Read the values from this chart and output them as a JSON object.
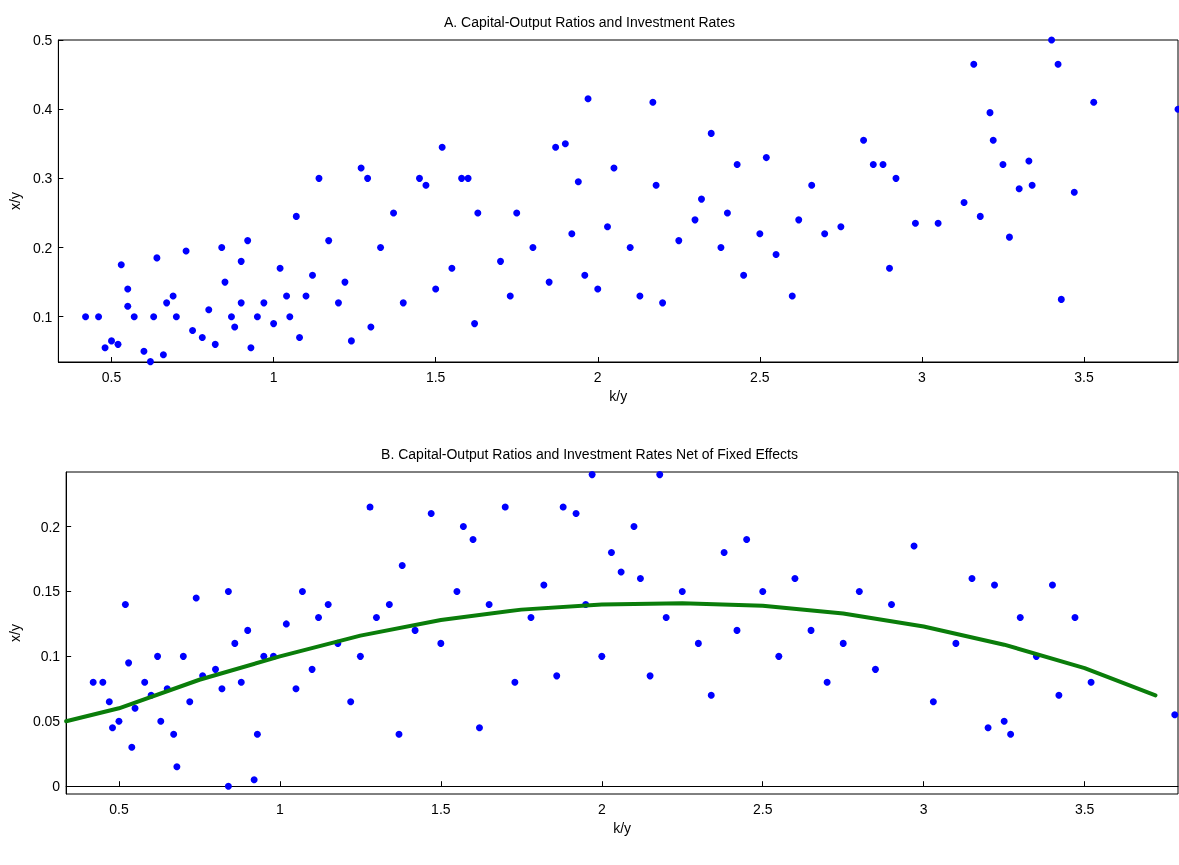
{
  "chart_data": [
    {
      "type": "scatter",
      "title": "A. Capital-Output Ratios and Investment Rates",
      "xlabel": "k/y",
      "ylabel": "x/y",
      "xlim": [
        0.336,
        3.79
      ],
      "ylim": [
        0.0345,
        0.5
      ],
      "xticks": [
        0.5,
        1,
        1.5,
        2,
        2.5,
        3,
        3.5
      ],
      "yticks": [
        0.1,
        0.2,
        0.3,
        0.4,
        0.5
      ],
      "marker": "circle",
      "series": [
        {
          "color": "#0000ff",
          "x": [
            0.42,
            0.46,
            0.48,
            0.5,
            0.52,
            0.53,
            0.55,
            0.55,
            0.57,
            0.6,
            0.62,
            0.63,
            0.64,
            0.66,
            0.67,
            0.69,
            0.7,
            0.73,
            0.75,
            0.78,
            0.8,
            0.82,
            0.84,
            0.85,
            0.87,
            0.88,
            0.9,
            0.9,
            0.92,
            0.93,
            0.95,
            0.97,
            1.0,
            1.02,
            1.04,
            1.05,
            1.07,
            1.08,
            1.1,
            1.12,
            1.14,
            1.17,
            1.2,
            1.22,
            1.24,
            1.27,
            1.29,
            1.3,
            1.33,
            1.37,
            1.4,
            1.45,
            1.47,
            1.5,
            1.52,
            1.55,
            1.58,
            1.6,
            1.62,
            1.63,
            1.7,
            1.73,
            1.75,
            1.8,
            1.85,
            1.87,
            1.9,
            1.92,
            1.94,
            1.96,
            1.97,
            2.0,
            2.03,
            2.05,
            2.1,
            2.13,
            2.17,
            2.18,
            2.2,
            2.25,
            2.3,
            2.32,
            2.35,
            2.38,
            2.4,
            2.43,
            2.45,
            2.5,
            2.52,
            2.55,
            2.6,
            2.62,
            2.66,
            2.7,
            2.75,
            2.82,
            2.85,
            2.88,
            2.9,
            2.92,
            2.98,
            3.05,
            3.13,
            3.16,
            3.18,
            3.21,
            3.22,
            3.25,
            3.27,
            3.3,
            3.33,
            3.34,
            3.4,
            3.42,
            3.43,
            3.47,
            3.53,
            3.79
          ],
          "values": [
            0.1,
            0.1,
            0.055,
            0.065,
            0.06,
            0.175,
            0.14,
            0.115,
            0.1,
            0.05,
            0.035,
            0.1,
            0.185,
            0.045,
            0.12,
            0.13,
            0.1,
            0.195,
            0.08,
            0.07,
            0.11,
            0.06,
            0.2,
            0.15,
            0.1,
            0.085,
            0.12,
            0.18,
            0.21,
            0.055,
            0.1,
            0.12,
            0.09,
            0.17,
            0.13,
            0.1,
            0.245,
            0.07,
            0.13,
            0.16,
            0.3,
            0.21,
            0.12,
            0.15,
            0.065,
            0.315,
            0.3,
            0.085,
            0.2,
            0.25,
            0.12,
            0.3,
            0.29,
            0.14,
            0.345,
            0.17,
            0.3,
            0.3,
            0.09,
            0.25,
            0.18,
            0.13,
            0.25,
            0.2,
            0.15,
            0.345,
            0.35,
            0.22,
            0.295,
            0.16,
            0.415,
            0.14,
            0.23,
            0.315,
            0.2,
            0.13,
            0.41,
            0.29,
            0.12,
            0.21,
            0.24,
            0.27,
            0.365,
            0.2,
            0.25,
            0.32,
            0.16,
            0.22,
            0.33,
            0.19,
            0.13,
            0.24,
            0.29,
            0.22,
            0.23,
            0.355,
            0.32,
            0.32,
            0.17,
            0.3,
            0.235,
            0.235,
            0.265,
            0.465,
            0.245,
            0.395,
            0.355,
            0.32,
            0.215,
            0.285,
            0.325,
            0.29,
            0.5,
            0.465,
            0.125,
            0.28,
            0.41,
            0.4
          ]
        }
      ]
    },
    {
      "type": "scatter",
      "title": "B. Capital-Output Ratios and Investment Rates Net of Fixed Effects",
      "xlabel": "k/y",
      "ylabel": "x/y",
      "xlim": [
        0.336,
        3.79
      ],
      "ylim": [
        -0.006,
        0.242
      ],
      "xticks": [
        0.5,
        1,
        1.5,
        2,
        2.5,
        3,
        3.5
      ],
      "yticks": [
        0,
        0.05,
        0.1,
        0.15,
        0.2
      ],
      "marker": "circle",
      "series": [
        {
          "color": "#0000ff",
          "x": [
            0.42,
            0.45,
            0.47,
            0.48,
            0.5,
            0.52,
            0.53,
            0.54,
            0.55,
            0.58,
            0.6,
            0.62,
            0.63,
            0.65,
            0.67,
            0.68,
            0.7,
            0.72,
            0.74,
            0.76,
            0.8,
            0.82,
            0.84,
            0.84,
            0.86,
            0.88,
            0.9,
            0.92,
            0.93,
            0.95,
            0.98,
            1.02,
            1.05,
            1.07,
            1.1,
            1.12,
            1.15,
            1.18,
            1.22,
            1.25,
            1.28,
            1.3,
            1.34,
            1.37,
            1.38,
            1.42,
            1.47,
            1.5,
            1.55,
            1.57,
            1.6,
            1.62,
            1.65,
            1.7,
            1.73,
            1.78,
            1.82,
            1.86,
            1.88,
            1.92,
            1.95,
            1.97,
            2.0,
            2.03,
            2.06,
            2.1,
            2.12,
            2.15,
            2.18,
            2.2,
            2.25,
            2.3,
            2.34,
            2.38,
            2.42,
            2.45,
            2.5,
            2.55,
            2.6,
            2.65,
            2.7,
            2.75,
            2.8,
            2.85,
            2.9,
            2.97,
            3.03,
            3.1,
            3.15,
            3.2,
            3.22,
            3.25,
            3.27,
            3.3,
            3.35,
            3.4,
            3.42,
            3.47,
            3.52,
            3.78
          ],
          "values": [
            0.08,
            0.08,
            0.065,
            0.045,
            0.05,
            0.14,
            0.095,
            0.03,
            0.06,
            0.08,
            0.07,
            0.1,
            0.05,
            0.075,
            0.04,
            0.015,
            0.1,
            0.065,
            0.145,
            0.085,
            0.09,
            0.075,
            0.15,
            0,
            0.11,
            0.08,
            0.12,
            0.005,
            0.04,
            0.1,
            0.1,
            0.125,
            0.075,
            0.15,
            0.09,
            0.13,
            0.14,
            0.11,
            0.065,
            0.1,
            0.215,
            0.13,
            0.14,
            0.04,
            0.17,
            0.12,
            0.21,
            0.11,
            0.15,
            0.2,
            0.19,
            0.045,
            0.14,
            0.215,
            0.08,
            0.13,
            0.155,
            0.085,
            0.215,
            0.21,
            0.14,
            0.24,
            0.1,
            0.18,
            0.165,
            0.2,
            0.16,
            0.085,
            0.24,
            0.13,
            0.15,
            0.11,
            0.07,
            0.18,
            0.12,
            0.19,
            0.15,
            0.1,
            0.16,
            0.12,
            0.08,
            0.11,
            0.15,
            0.09,
            0.14,
            0.185,
            0.065,
            0.11,
            0.16,
            0.045,
            0.155,
            0.05,
            0.04,
            0.13,
            0.1,
            0.155,
            0.07,
            0.13,
            0.08,
            0.055
          ]
        },
        {
          "type": "line",
          "color": "#0a7d0a",
          "line_style": "solid",
          "marker": "none",
          "x": [
            0.336,
            0.5,
            0.75,
            1,
            1.25,
            1.5,
            1.75,
            2,
            2.25,
            2.5,
            2.75,
            3,
            3.25,
            3.5,
            3.72
          ],
          "values": [
            0.05,
            0.06,
            0.082,
            0.1,
            0.116,
            0.128,
            0.136,
            0.14,
            0.141,
            0.139,
            0.133,
            0.123,
            0.109,
            0.091,
            0.07
          ]
        }
      ]
    }
  ]
}
